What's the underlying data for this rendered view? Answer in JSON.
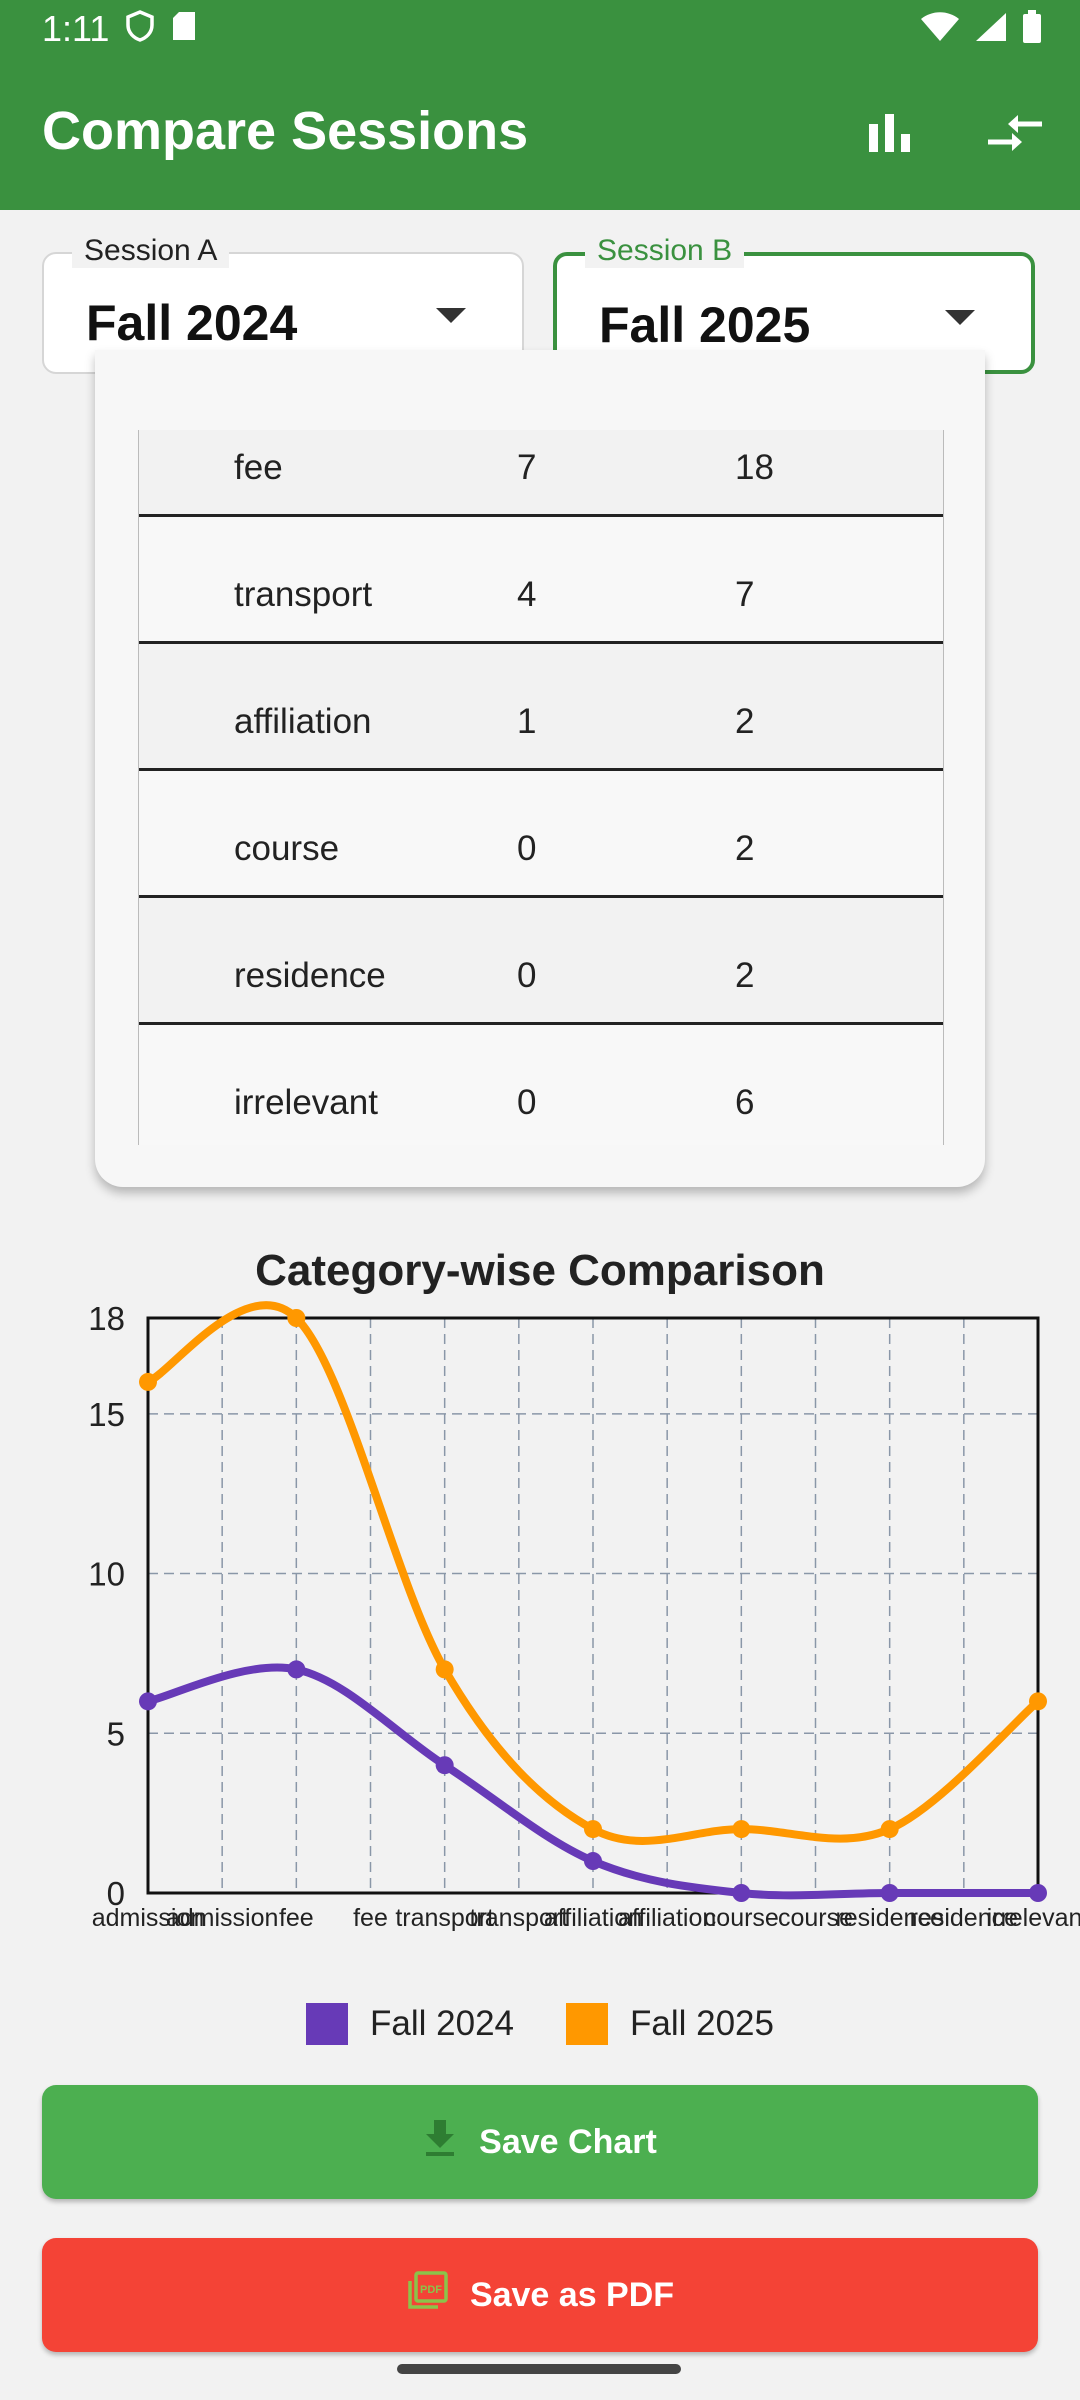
{
  "status_bar": {
    "time": "1:11",
    "icons": [
      "shield-icon",
      "sd-card-icon",
      "wifi-icon",
      "signal-icon",
      "battery-icon"
    ]
  },
  "app_bar": {
    "title": "Compare Sessions",
    "actions": [
      "bar-chart-icon",
      "compare-arrows-icon"
    ],
    "color": "#3a913f"
  },
  "session_a": {
    "label": "Session A",
    "value": "Fall 2024"
  },
  "session_b": {
    "label": "Session B",
    "value": "Fall 2025"
  },
  "table": {
    "rows": [
      {
        "category": "fee",
        "a": "7",
        "b": "18"
      },
      {
        "category": "transport",
        "a": "4",
        "b": "7"
      },
      {
        "category": "affiliation",
        "a": "1",
        "b": "2"
      },
      {
        "category": "course",
        "a": "0",
        "b": "2"
      },
      {
        "category": "residence",
        "a": "0",
        "b": "2"
      },
      {
        "category": "irrelevant",
        "a": "0",
        "b": "6"
      }
    ]
  },
  "chart_data": {
    "type": "line",
    "title": "Category-wise Comparison",
    "categories": [
      "admission",
      "fee",
      "transport",
      "affiliation",
      "course",
      "residence",
      "irrelevant"
    ],
    "x_tick_labels": [
      "admission",
      "admission",
      "fee",
      "fee",
      "transport",
      "transport",
      "affiliation",
      "affiliation",
      "course",
      "course",
      "residence",
      "residence",
      "irrelevant"
    ],
    "yticks": [
      0,
      5,
      10,
      15,
      18
    ],
    "ylim": [
      0,
      18
    ],
    "grid": true,
    "legend_position": "bottom",
    "series": [
      {
        "name": "Fall 2024",
        "color": "#673ab7",
        "values": [
          6,
          7,
          4,
          1,
          0,
          0,
          0
        ]
      },
      {
        "name": "Fall 2025",
        "color": "#ff9800",
        "values": [
          16,
          18,
          7,
          2,
          2,
          2,
          6
        ]
      }
    ]
  },
  "buttons": {
    "save_chart": {
      "label": "Save Chart",
      "icon": "download-icon",
      "color": "#4caf50"
    },
    "save_pdf": {
      "label": "Save as PDF",
      "icon": "pdf-icon",
      "color": "#f44336"
    }
  }
}
